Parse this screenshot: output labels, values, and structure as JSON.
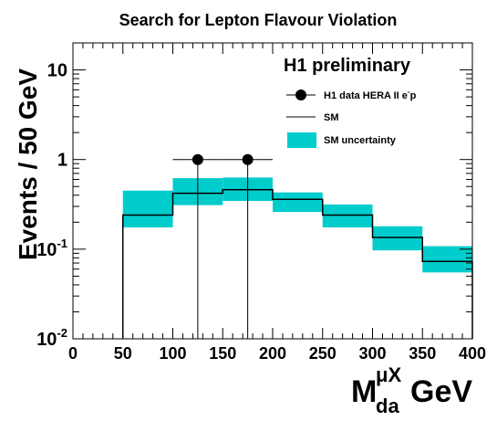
{
  "chart_data": {
    "type": "bar",
    "title": "Search for Lepton Flavour Violation",
    "ylabel": "Events / 50 GeV",
    "xlabel": {
      "base": "M",
      "sup": "μX",
      "sub": "da",
      "unit": "GeV"
    },
    "annotation": "H1 preliminary",
    "y_scale": "log",
    "xlim": [
      0,
      400
    ],
    "ylim": [
      0.01,
      20
    ],
    "x_ticks": [
      "0",
      "50",
      "100",
      "150",
      "200",
      "250",
      "300",
      "350",
      "400"
    ],
    "y_ticks": [
      {
        "value": 0.01,
        "base": "10",
        "exp": "-2"
      },
      {
        "value": 0.1,
        "base": "10",
        "exp": "-1"
      },
      {
        "value": 1,
        "label": "1"
      },
      {
        "value": 10,
        "label": "10"
      }
    ],
    "bin_edges": [
      50,
      100,
      150,
      200,
      250,
      300,
      350,
      400
    ],
    "series": [
      {
        "name": "SM",
        "kind": "histogram",
        "values": [
          0.24,
          0.42,
          0.46,
          0.36,
          0.24,
          0.135,
          0.073
        ],
        "color": "#000000"
      },
      {
        "name": "SM uncertainty",
        "kind": "band",
        "low": [
          0.175,
          0.31,
          0.345,
          0.26,
          0.175,
          0.097,
          0.055
        ],
        "high": [
          0.45,
          0.62,
          0.63,
          0.43,
          0.315,
          0.18,
          0.108
        ],
        "color": "#00cccc"
      },
      {
        "name": "H1 data HERA II e⁻p",
        "kind": "points",
        "x": [
          125,
          175
        ],
        "y": [
          1,
          1
        ],
        "x_err": [
          25,
          25
        ],
        "color": "#000000"
      }
    ],
    "legend": {
      "position": "top-right",
      "entries": [
        {
          "label": "H1 data HERA II e",
          "sup": "-",
          "suffix": "p",
          "marker": "point"
        },
        {
          "label": "SM",
          "marker": "line"
        },
        {
          "label": "SM uncertainty",
          "marker": "box"
        }
      ]
    },
    "grid": false
  }
}
